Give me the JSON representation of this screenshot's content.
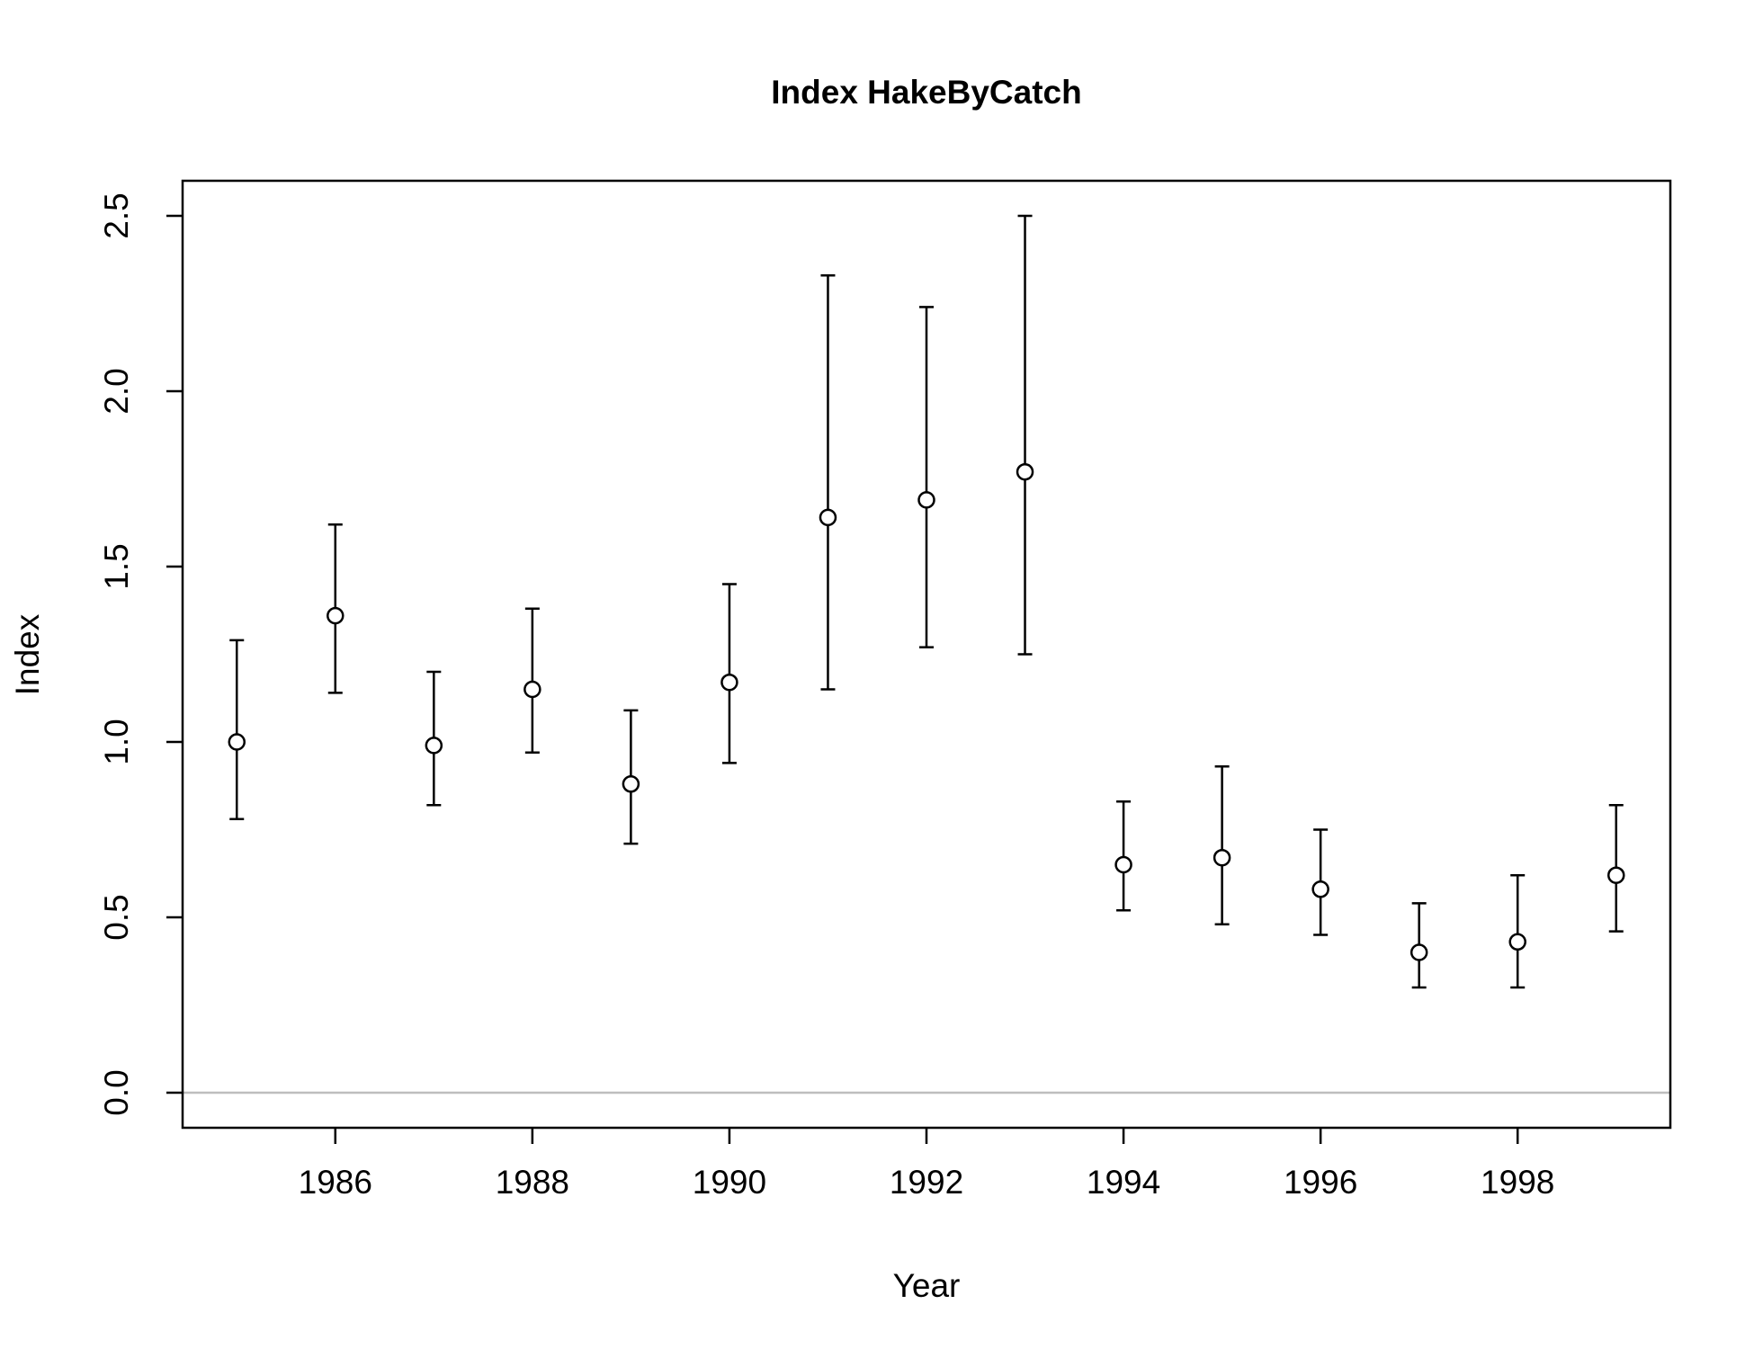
{
  "chart_data": {
    "type": "scatter",
    "title": "Index HakeByCatch",
    "xlabel": "Year",
    "ylabel": "Index",
    "xlim": [
      1984.45,
      1999.55
    ],
    "ylim": [
      -0.1,
      2.6
    ],
    "x_ticks": [
      1986,
      1988,
      1990,
      1992,
      1994,
      1996,
      1998
    ],
    "y_ticks": [
      0.0,
      0.5,
      1.0,
      1.5,
      2.0,
      2.5
    ],
    "x_tick_labels": [
      "1986",
      "1988",
      "1990",
      "1992",
      "1994",
      "1996",
      "1998"
    ],
    "y_tick_labels": [
      "0.0",
      "0.5",
      "1.0",
      "1.5",
      "2.0",
      "2.5"
    ],
    "reference_line": {
      "y": 0.0,
      "color": "#bebebe"
    },
    "grid": false,
    "legend": "none",
    "colors": {
      "points": "#000000",
      "errorbars": "#000000",
      "reference": "#bebebe"
    },
    "series": [
      {
        "x": [
          1985,
          1986,
          1987,
          1988,
          1989,
          1990,
          1991,
          1992,
          1993,
          1994,
          1995,
          1996,
          1997,
          1998,
          1999
        ],
        "values": [
          1.0,
          1.36,
          0.99,
          1.15,
          0.88,
          1.17,
          1.64,
          1.69,
          1.77,
          0.65,
          0.67,
          0.58,
          0.4,
          0.43,
          0.62
        ],
        "lower": [
          0.78,
          1.14,
          0.82,
          0.97,
          0.71,
          0.94,
          1.15,
          1.27,
          1.25,
          0.52,
          0.48,
          0.45,
          0.3,
          0.3,
          0.46
        ],
        "upper": [
          1.29,
          1.62,
          1.2,
          1.38,
          1.09,
          1.45,
          2.33,
          2.24,
          2.5,
          0.83,
          0.93,
          0.75,
          0.54,
          0.62,
          0.82
        ]
      }
    ]
  }
}
